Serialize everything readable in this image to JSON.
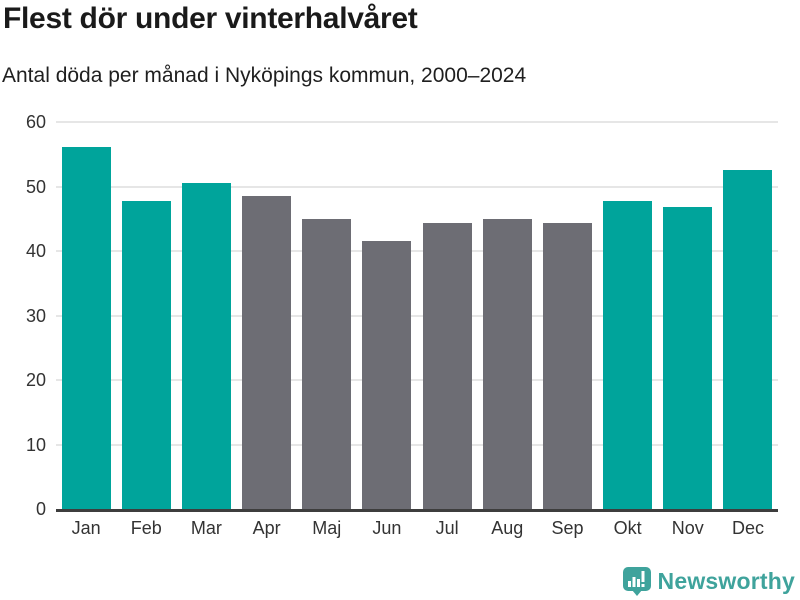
{
  "header": {
    "title": "Flest dör under vinterhalvåret",
    "subtitle": "Antal döda per månad i Nyköpings kommun, 2000–2024"
  },
  "chart_data": {
    "type": "bar",
    "title": "Flest dör under vinterhalvåret",
    "subtitle": "Antal döda per månad i Nyköpings kommun, 2000–2024",
    "categories": [
      "Jan",
      "Feb",
      "Mar",
      "Apr",
      "Maj",
      "Jun",
      "Jul",
      "Aug",
      "Sep",
      "Okt",
      "Nov",
      "Dec"
    ],
    "values": [
      56.1,
      47.7,
      50.5,
      48.5,
      44.9,
      41.5,
      44.3,
      44.9,
      44.3,
      47.7,
      46.9,
      52.6
    ],
    "bar_colors": [
      "#00a49b",
      "#00a49b",
      "#00a49b",
      "#6d6d74",
      "#6d6d74",
      "#6d6d74",
      "#6d6d74",
      "#6d6d74",
      "#6d6d74",
      "#00a49b",
      "#00a49b",
      "#00a49b"
    ],
    "xlabel": "",
    "ylabel": "",
    "ylim": [
      0,
      60
    ],
    "yticks": [
      0,
      10,
      20,
      30,
      40,
      50,
      60
    ],
    "grid": "horizontal",
    "legend": "none"
  },
  "colors": {
    "winter_teal": "#00a49b",
    "summer_gray": "#6d6d74",
    "gridline": "#e6e6e6",
    "axis_line": "#3d3d3d",
    "brand_teal": "#3fa39c"
  },
  "footer": {
    "brand": "Newsworthy",
    "logo_icon": "newsworthy-speech-bubble-barchart-icon"
  }
}
